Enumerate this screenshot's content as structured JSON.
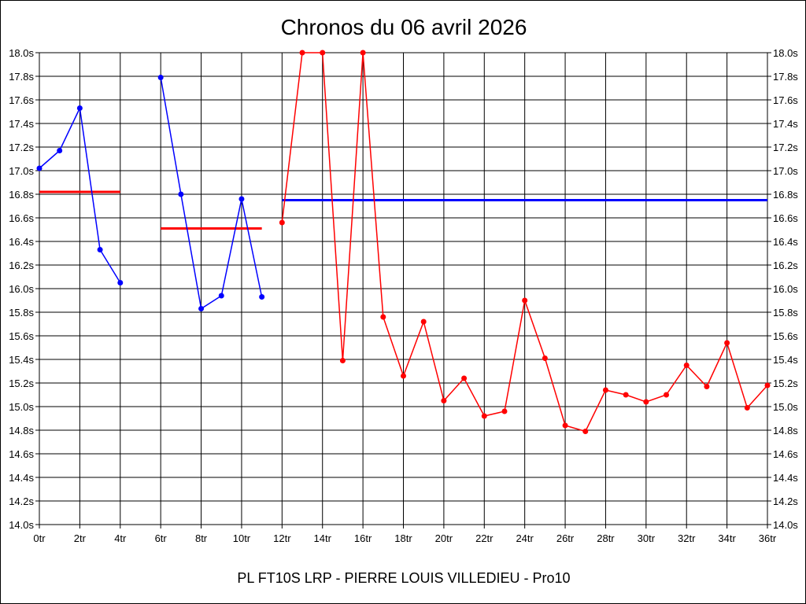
{
  "chart_data": {
    "type": "line",
    "title": "Chronos du 06 avril 2026",
    "subtitle": "PL FT10S LRP - PIERRE LOUIS VILLEDIEU - Pro10",
    "xlim": [
      0,
      36
    ],
    "ylim": [
      14.0,
      18.0
    ],
    "x_tick_step": 2,
    "x_tick_suffix": "tr",
    "y_tick_step": 0.2,
    "y_tick_suffix": "s",
    "grid": true,
    "series": [
      {
        "color": "#0000ff",
        "points": [
          [
            0,
            17.02
          ],
          [
            1,
            17.17
          ],
          [
            2,
            17.53
          ],
          [
            3,
            16.33
          ],
          [
            4,
            16.05
          ]
        ]
      },
      {
        "color": "#0000ff",
        "points": [
          [
            6,
            17.79
          ],
          [
            7,
            16.8
          ],
          [
            8,
            15.83
          ],
          [
            9,
            15.94
          ],
          [
            10,
            16.76
          ],
          [
            11,
            15.93
          ]
        ]
      },
      {
        "color": "#ff0000",
        "points": [
          [
            12,
            16.56
          ],
          [
            13,
            18.0
          ],
          [
            14,
            18.0
          ],
          [
            15,
            15.39
          ],
          [
            16,
            18.0
          ],
          [
            17,
            15.76
          ],
          [
            18,
            15.26
          ],
          [
            19,
            15.72
          ],
          [
            20,
            15.05
          ],
          [
            21,
            15.24
          ],
          [
            22,
            14.92
          ],
          [
            23,
            14.96
          ],
          [
            24,
            15.9
          ],
          [
            25,
            15.41
          ],
          [
            26,
            14.84
          ],
          [
            27,
            14.79
          ],
          [
            28,
            15.14
          ],
          [
            29,
            15.1
          ],
          [
            30,
            15.04
          ],
          [
            31,
            15.1
          ],
          [
            32,
            15.35
          ],
          [
            33,
            15.17
          ],
          [
            34,
            15.54
          ],
          [
            35,
            14.99
          ],
          [
            36,
            15.18
          ]
        ]
      }
    ],
    "average_lines": [
      {
        "color": "#ff0000",
        "x": [
          0,
          4
        ],
        "y": 16.82
      },
      {
        "color": "#ff0000",
        "x": [
          6,
          11
        ],
        "y": 16.51
      },
      {
        "color": "#0000ff",
        "x": [
          12,
          36
        ],
        "y": 16.75
      }
    ]
  }
}
